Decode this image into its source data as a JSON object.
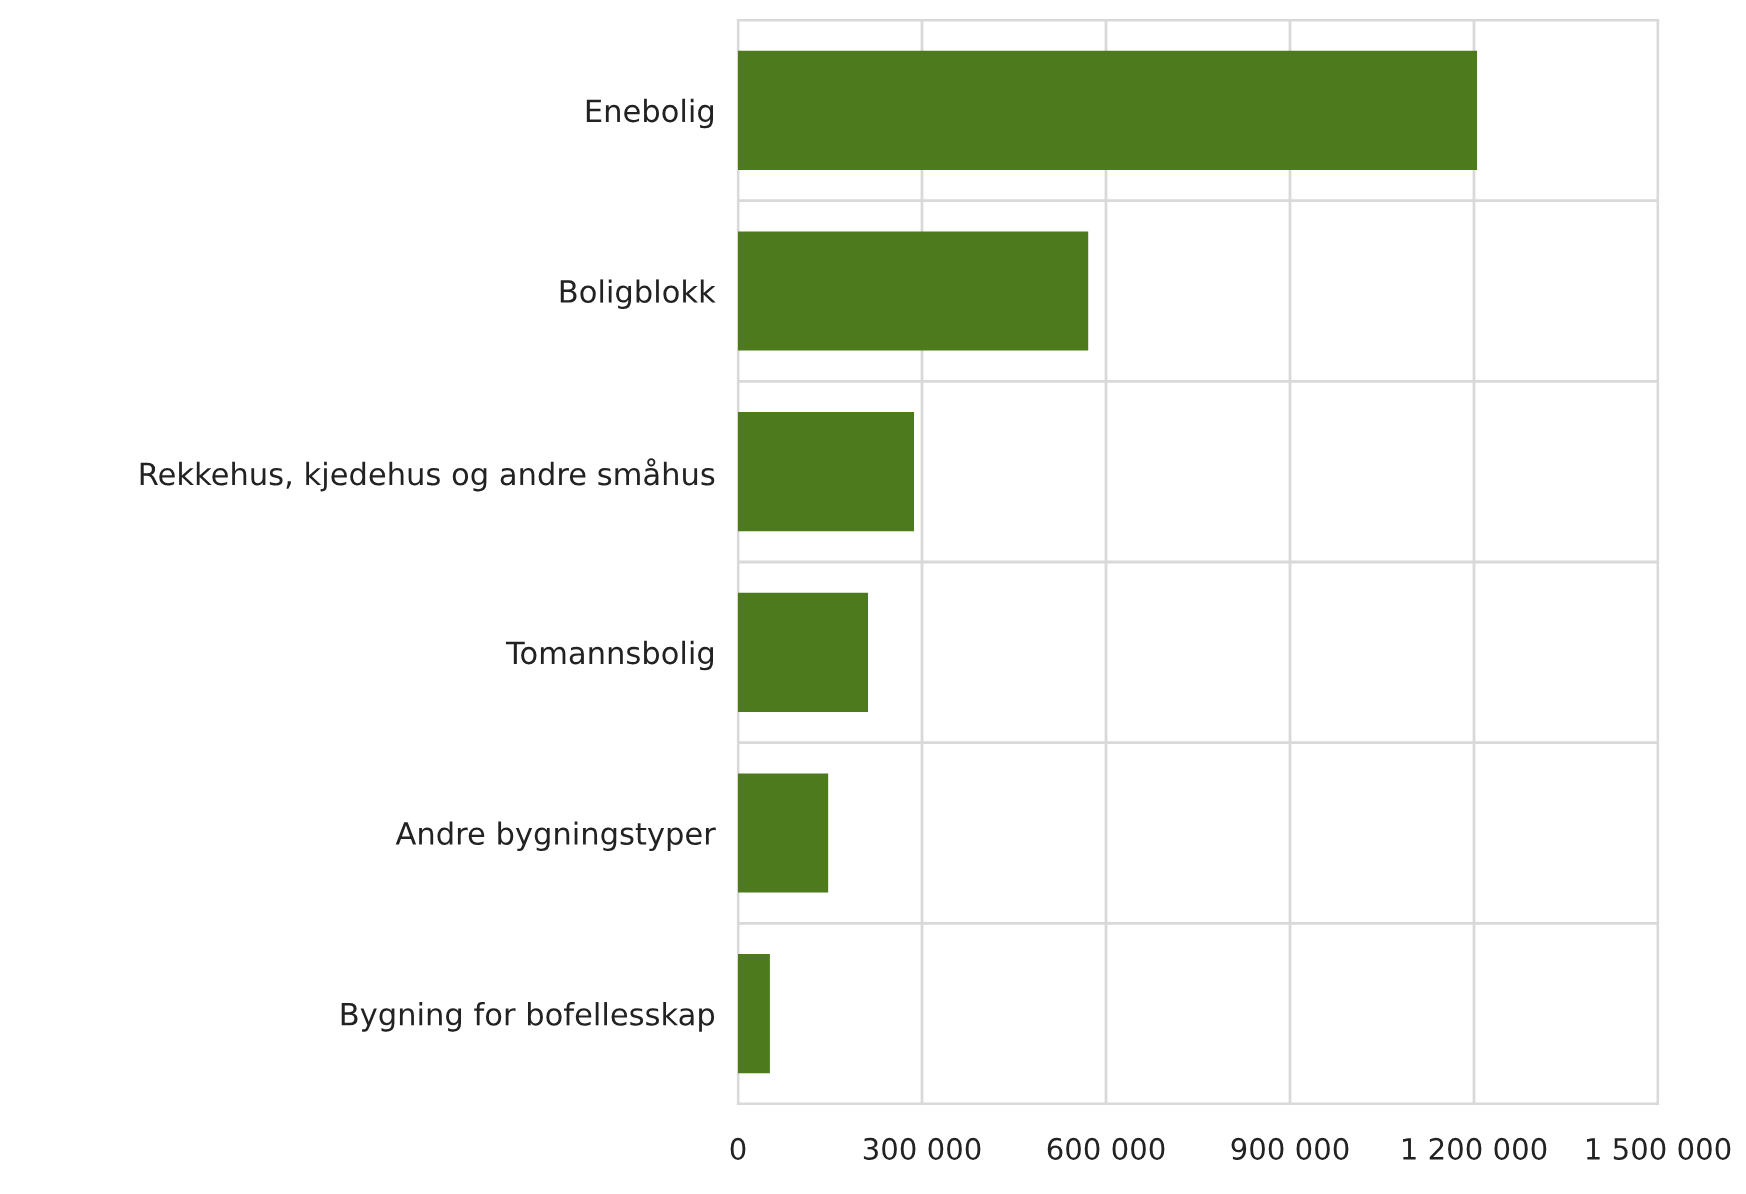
{
  "chart_data": {
    "type": "bar",
    "orientation": "horizontal",
    "categories": [
      "Enebolig",
      "Boligblokk",
      "Rekkehus, kjedehus og andre småhus",
      "Tomannsbolig",
      "Andre bygningstyper",
      "Bygning for bofellesskap"
    ],
    "values": [
      1205000,
      571000,
      287000,
      212000,
      147000,
      52000
    ],
    "color": "#4e7a1e",
    "xlim": [
      0,
      1500000
    ],
    "xticks": [
      {
        "value": 0,
        "label": "0"
      },
      {
        "value": 300000,
        "label": "300 000"
      },
      {
        "value": 600000,
        "label": "600 000"
      },
      {
        "value": 900000,
        "label": "900 000"
      },
      {
        "value": 1200000,
        "label": "1 200 000"
      },
      {
        "value": 1500000,
        "label": "1 500 000"
      }
    ],
    "grid": true
  }
}
